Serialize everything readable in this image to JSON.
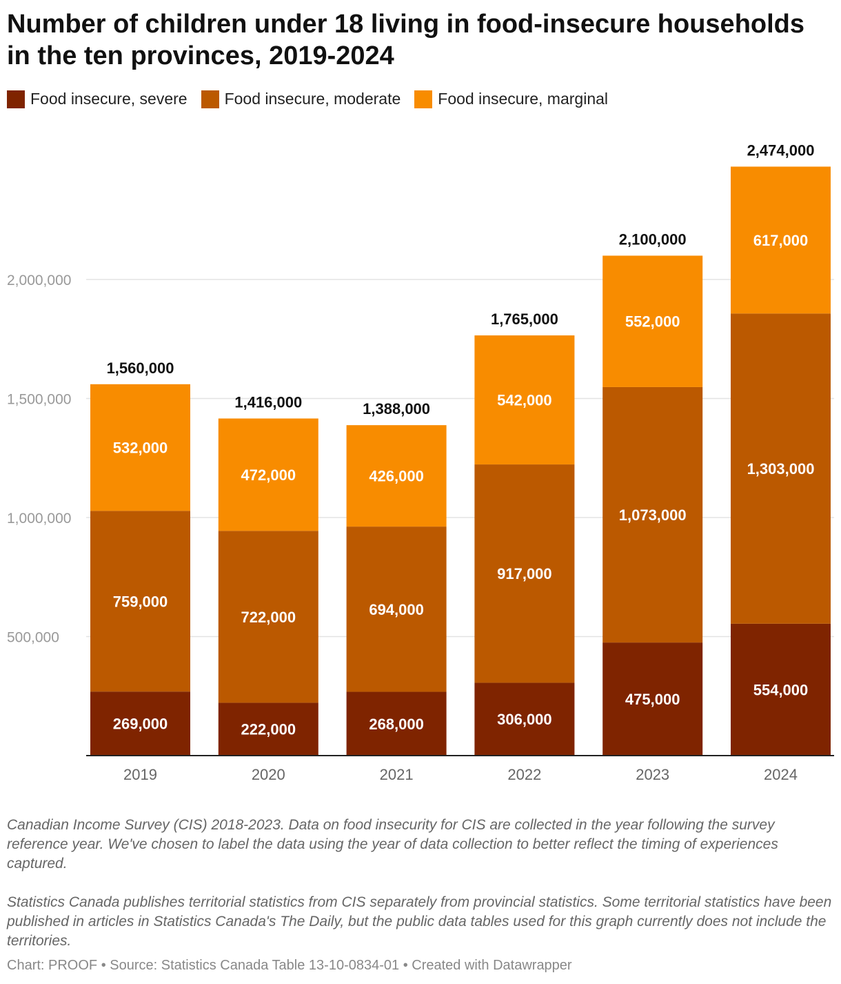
{
  "chart_data": {
    "type": "bar",
    "stacked": true,
    "title": "Number of children under 18 living in food-insecure households in the ten provinces, 2019-2024",
    "categories": [
      "2019",
      "2020",
      "2021",
      "2022",
      "2023",
      "2024"
    ],
    "series": [
      {
        "name": "Food insecure, severe",
        "color": "#7f2400",
        "values": [
          269000,
          222000,
          268000,
          306000,
          475000,
          554000
        ],
        "labels": [
          "269,000",
          "222,000",
          "268,000",
          "306,000",
          "475,000",
          "554,000"
        ]
      },
      {
        "name": "Food insecure, moderate",
        "color": "#bb5900",
        "values": [
          759000,
          722000,
          694000,
          917000,
          1073000,
          1303000
        ],
        "labels": [
          "759,000",
          "722,000",
          "694,000",
          "917,000",
          "1,073,000",
          "1,303,000"
        ]
      },
      {
        "name": "Food insecure, marginal",
        "color": "#f88c00",
        "values": [
          532000,
          472000,
          426000,
          542000,
          552000,
          617000
        ],
        "labels": [
          "532,000",
          "472,000",
          "426,000",
          "542,000",
          "552,000",
          "617,000"
        ]
      }
    ],
    "totals": [
      "1,560,000",
      "1,416,000",
      "1,388,000",
      "1,765,000",
      "2,100,000",
      "2,474,000"
    ],
    "total_values": [
      1560000,
      1416000,
      1388000,
      1765000,
      2100000,
      2474000
    ],
    "y_ticks": [
      500000,
      1000000,
      1500000,
      2000000
    ],
    "y_tick_labels": [
      "500,000",
      "1,000,000",
      "1,500,000",
      "2,000,000"
    ],
    "ylim": [
      0,
      2474000
    ],
    "grid": true,
    "legend": "top-left"
  },
  "notes": [
    "Canadian Income Survey (CIS) 2018-2023. Data on food insecurity for CIS are collected in the year following the survey reference year. We've chosen to label the data using the year of data collection to better reflect the timing of experiences captured.",
    "Statistics Canada publishes territorial statistics from CIS separately from provincial statistics. Some territorial statistics have been published in articles in Statistics Canada's The Daily, but the public data tables used for this graph currently does not include the territories."
  ],
  "footer": "Chart: PROOF • Source: Statistics Canada Table 13-10-0834-01 • Created with Datawrapper"
}
